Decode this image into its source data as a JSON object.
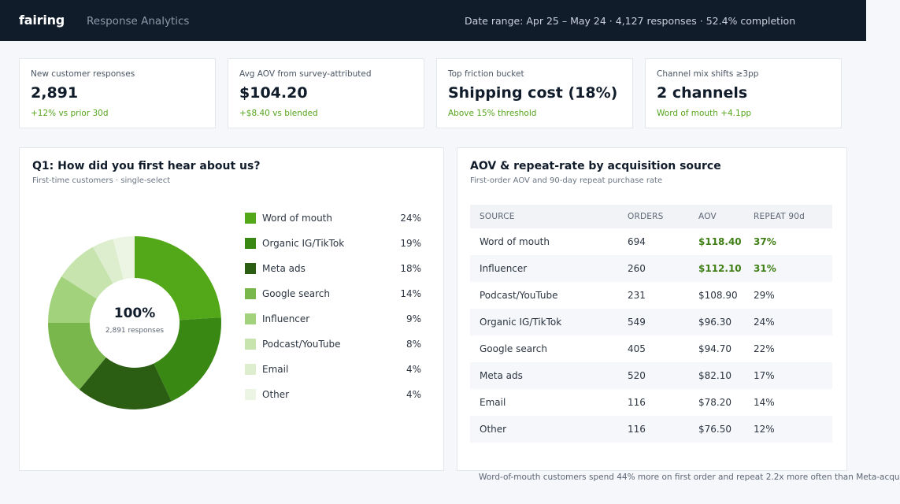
{
  "header": {
    "logo": "fairing",
    "app_title": "Response Analytics",
    "date_range": "Date range: Apr 25 – May 24 · 4,127 responses · 52.4% completion"
  },
  "kpis": [
    {
      "label": "New customer responses",
      "value": "2,891",
      "delta": "+12% vs prior 30d"
    },
    {
      "label": "Avg AOV from survey-attributed",
      "value": "$104.20",
      "delta": "+$8.40 vs blended"
    },
    {
      "label": "Top friction bucket",
      "value": "Shipping cost (18%)",
      "delta": "Above 15% threshold"
    },
    {
      "label": "Channel mix shifts ≥3pp",
      "value": "2 channels",
      "delta": "Word of mouth +4.1pp"
    }
  ],
  "donut_panel": {
    "title": "Q1: How did you first hear about us?",
    "subtitle": "First-time customers · single-select",
    "center_value": "100%",
    "center_sub": "2,891 responses",
    "items": [
      {
        "label": "Word of mouth",
        "pct_label": "24%",
        "value": 24,
        "color": "#52a818"
      },
      {
        "label": "Organic IG/TikTok",
        "pct_label": "19%",
        "value": 19,
        "color": "#3a8814"
      },
      {
        "label": "Meta ads",
        "pct_label": "18%",
        "value": 18,
        "color": "#2b5d12"
      },
      {
        "label": "Google search",
        "pct_label": "14%",
        "value": 14,
        "color": "#79b64c"
      },
      {
        "label": "Influencer",
        "pct_label": "9%",
        "value": 9,
        "color": "#a3d27c"
      },
      {
        "label": "Podcast/YouTube",
        "pct_label": "8%",
        "value": 8,
        "color": "#c7e4ae"
      },
      {
        "label": "Email",
        "pct_label": "4%",
        "value": 4,
        "color": "#ddeecf"
      },
      {
        "label": "Other",
        "pct_label": "4%",
        "value": 4,
        "color": "#ecf5e3"
      }
    ]
  },
  "table_panel": {
    "title": "AOV & repeat-rate by acquisition source",
    "subtitle": "First-order AOV and 90-day repeat purchase rate",
    "columns": [
      "SOURCE",
      "ORDERS",
      "AOV",
      "REPEAT 90d"
    ],
    "rows": [
      {
        "source": "Word of mouth",
        "orders": "694",
        "aov": "$118.40",
        "repeat": "37%",
        "highlight": true
      },
      {
        "source": "Influencer",
        "orders": "260",
        "aov": "$112.10",
        "repeat": "31%",
        "highlight": true
      },
      {
        "source": "Podcast/YouTube",
        "orders": "231",
        "aov": "$108.90",
        "repeat": "29%",
        "highlight": false
      },
      {
        "source": "Organic IG/TikTok",
        "orders": "549",
        "aov": "$96.30",
        "repeat": "24%",
        "highlight": false
      },
      {
        "source": "Google search",
        "orders": "405",
        "aov": "$94.70",
        "repeat": "22%",
        "highlight": false
      },
      {
        "source": "Meta ads",
        "orders": "520",
        "aov": "$82.10",
        "repeat": "17%",
        "highlight": false
      },
      {
        "source": "Email",
        "orders": "116",
        "aov": "$78.20",
        "repeat": "14%",
        "highlight": false
      },
      {
        "source": "Other",
        "orders": "116",
        "aov": "$76.50",
        "repeat": "12%",
        "highlight": false
      }
    ],
    "footnote": "Word-of-mouth customers spend 44% more on first order and repeat 2.2x more often than Meta-acqu"
  }
}
